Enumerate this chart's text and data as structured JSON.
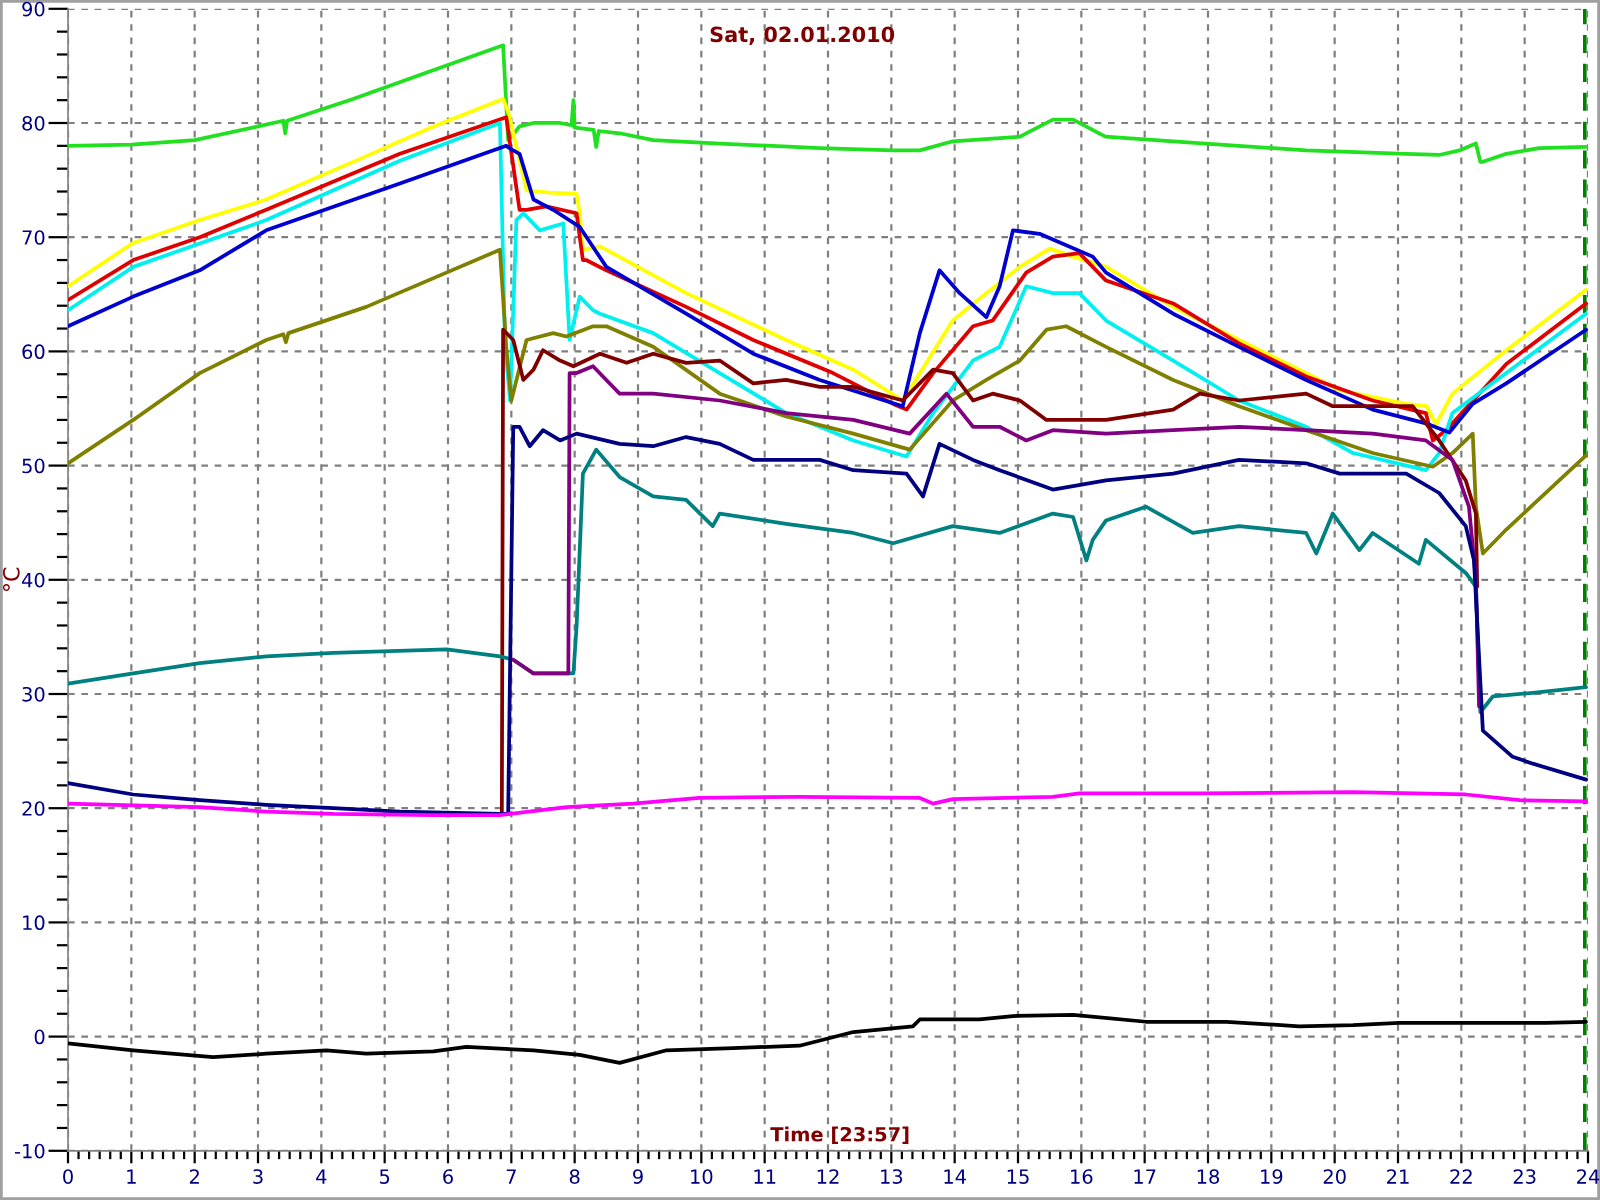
{
  "chart_data": {
    "type": "line",
    "title": "Sat, 02.01.2010",
    "xlabel": "Time [23:57]",
    "ylabel": "°C",
    "xlim": [
      0,
      24
    ],
    "ylim": [
      -10,
      90
    ],
    "xticks": [
      0,
      {
        "value": 0.1667,
        "label": null
      },
      {
        "value": 0.3333,
        "label": null
      },
      {
        "value": 0.5,
        "label": null
      },
      {
        "value": 0.6667,
        "label": null
      },
      {
        "value": 0.8333,
        "label": null
      },
      1,
      {
        "value": 1.1667,
        "label": null
      },
      {
        "value": 1.3333,
        "label": null
      },
      {
        "value": 1.5,
        "label": null
      },
      {
        "value": 1.6667,
        "label": null
      },
      {
        "value": 1.8333,
        "label": null
      },
      2,
      {
        "value": 2.1667,
        "label": null
      },
      {
        "value": 2.3333,
        "label": null
      },
      {
        "value": 2.5,
        "label": null
      },
      {
        "value": 2.6667,
        "label": null
      },
      {
        "value": 2.8333,
        "label": null
      },
      3,
      {
        "value": 3.1667,
        "label": null
      },
      {
        "value": 3.3333,
        "label": null
      },
      {
        "value": 3.5,
        "label": null
      },
      {
        "value": 3.6667,
        "label": null
      },
      {
        "value": 3.8333,
        "label": null
      },
      4,
      {
        "value": 4.1667,
        "label": null
      },
      {
        "value": 4.3333,
        "label": null
      },
      {
        "value": 4.5,
        "label": null
      },
      {
        "value": 4.6667,
        "label": null
      },
      {
        "value": 4.8333,
        "label": null
      },
      5,
      {
        "value": 5.1667,
        "label": null
      },
      {
        "value": 5.3333,
        "label": null
      },
      {
        "value": 5.5,
        "label": null
      },
      {
        "value": 5.6667,
        "label": null
      },
      {
        "value": 5.8333,
        "label": null
      },
      6,
      {
        "value": 6.1667,
        "label": null
      },
      {
        "value": 6.3333,
        "label": null
      },
      {
        "value": 6.5,
        "label": null
      },
      {
        "value": 6.6667,
        "label": null
      },
      {
        "value": 6.8333,
        "label": null
      },
      7,
      {
        "value": 7.1667,
        "label": null
      },
      {
        "value": 7.3333,
        "label": null
      },
      {
        "value": 7.5,
        "label": null
      },
      {
        "value": 7.6667,
        "label": null
      },
      {
        "value": 7.8333,
        "label": null
      },
      8,
      {
        "value": 8.1667,
        "label": null
      },
      {
        "value": 8.3333,
        "label": null
      },
      {
        "value": 8.5,
        "label": null
      },
      {
        "value": 8.6667,
        "label": null
      },
      {
        "value": 8.8333,
        "label": null
      },
      9,
      {
        "value": 9.1667,
        "label": null
      },
      {
        "value": 9.3333,
        "label": null
      },
      {
        "value": 9.5,
        "label": null
      },
      {
        "value": 9.6667,
        "label": null
      },
      {
        "value": 9.8333,
        "label": null
      },
      10,
      {
        "value": 10.1667,
        "label": null
      },
      {
        "value": 10.3333,
        "label": null
      },
      {
        "value": 10.5,
        "label": null
      },
      {
        "value": 10.6667,
        "label": null
      },
      {
        "value": 10.8333,
        "label": null
      },
      11,
      {
        "value": 11.1667,
        "label": null
      },
      {
        "value": 11.3333,
        "label": null
      },
      {
        "value": 11.5,
        "label": null
      },
      {
        "value": 11.6667,
        "label": null
      },
      {
        "value": 11.8333,
        "label": null
      },
      12,
      {
        "value": 12.1667,
        "label": null
      },
      {
        "value": 12.3333,
        "label": null
      },
      {
        "value": 12.5,
        "label": null
      },
      {
        "value": 12.6667,
        "label": null
      },
      {
        "value": 12.8333,
        "label": null
      },
      13,
      {
        "value": 13.1667,
        "label": null
      },
      {
        "value": 13.3333,
        "label": null
      },
      {
        "value": 13.5,
        "label": null
      },
      {
        "value": 13.6667,
        "label": null
      },
      {
        "value": 13.8333,
        "label": null
      },
      14,
      {
        "value": 14.1667,
        "label": null
      },
      {
        "value": 14.3333,
        "label": null
      },
      {
        "value": 14.5,
        "label": null
      },
      {
        "value": 14.6667,
        "label": null
      },
      {
        "value": 14.8333,
        "label": null
      },
      15,
      {
        "value": 15.1667,
        "label": null
      },
      {
        "value": 15.3333,
        "label": null
      },
      {
        "value": 15.5,
        "label": null
      },
      {
        "value": 15.6667,
        "label": null
      },
      {
        "value": 15.8333,
        "label": null
      },
      16,
      {
        "value": 16.1667,
        "label": null
      },
      {
        "value": 16.3333,
        "label": null
      },
      {
        "value": 16.5,
        "label": null
      },
      {
        "value": 16.6667,
        "label": null
      },
      {
        "value": 16.8333,
        "label": null
      },
      17,
      {
        "value": 17.1667,
        "label": null
      },
      {
        "value": 17.3333,
        "label": null
      },
      {
        "value": 17.5,
        "label": null
      },
      {
        "value": 17.6667,
        "label": null
      },
      {
        "value": 17.8333,
        "label": null
      },
      18,
      {
        "value": 18.1667,
        "label": null
      },
      {
        "value": 18.3333,
        "label": null
      },
      {
        "value": 18.5,
        "label": null
      },
      {
        "value": 18.6667,
        "label": null
      },
      {
        "value": 18.8333,
        "label": null
      },
      19,
      {
        "value": 19.1667,
        "label": null
      },
      {
        "value": 19.3333,
        "label": null
      },
      {
        "value": 19.5,
        "label": null
      },
      {
        "value": 19.6667,
        "label": null
      },
      {
        "value": 19.8333,
        "label": null
      },
      20,
      {
        "value": 20.1667,
        "label": null
      },
      {
        "value": 20.3333,
        "label": null
      },
      {
        "value": 20.5,
        "label": null
      },
      {
        "value": 20.6667,
        "label": null
      },
      {
        "value": 20.8333,
        "label": null
      },
      21,
      {
        "value": 21.1667,
        "label": null
      },
      {
        "value": 21.3333,
        "label": null
      },
      {
        "value": 21.5,
        "label": null
      },
      {
        "value": 21.6667,
        "label": null
      },
      {
        "value": 21.8333,
        "label": null
      },
      22,
      {
        "value": 22.1667,
        "label": null
      },
      {
        "value": 22.3333,
        "label": null
      },
      {
        "value": 22.5,
        "label": null
      },
      {
        "value": 22.6667,
        "label": null
      },
      {
        "value": 22.8333,
        "label": null
      },
      23,
      {
        "value": 23.1667,
        "label": null
      },
      {
        "value": 23.3333,
        "label": null
      },
      {
        "value": 23.5,
        "label": null
      },
      {
        "value": 23.6667,
        "label": null
      },
      {
        "value": 23.8333,
        "label": null
      },
      24
    ],
    "yticks": [
      -10,
      {
        "value": -8,
        "label": null
      },
      {
        "value": -6,
        "label": null
      },
      {
        "value": -4,
        "label": null
      },
      {
        "value": -2,
        "label": null
      },
      0,
      {
        "value": 2,
        "label": null
      },
      {
        "value": 4,
        "label": null
      },
      {
        "value": 6,
        "label": null
      },
      {
        "value": 8,
        "label": null
      },
      10,
      {
        "value": 12,
        "label": null
      },
      {
        "value": 14,
        "label": null
      },
      {
        "value": 16,
        "label": null
      },
      {
        "value": 18,
        "label": null
      },
      20,
      {
        "value": 22,
        "label": null
      },
      {
        "value": 24,
        "label": null
      },
      {
        "value": 26,
        "label": null
      },
      {
        "value": 28,
        "label": null
      },
      30,
      {
        "value": 32,
        "label": null
      },
      {
        "value": 34,
        "label": null
      },
      {
        "value": 36,
        "label": null
      },
      {
        "value": 38,
        "label": null
      },
      40,
      {
        "value": 42,
        "label": null
      },
      {
        "value": 44,
        "label": null
      },
      {
        "value": 46,
        "label": null
      },
      {
        "value": 48,
        "label": null
      },
      50,
      {
        "value": 52,
        "label": null
      },
      {
        "value": 54,
        "label": null
      },
      {
        "value": 56,
        "label": null
      },
      {
        "value": 58,
        "label": null
      },
      60,
      {
        "value": 62,
        "label": null
      },
      {
        "value": 64,
        "label": null
      },
      {
        "value": 66,
        "label": null
      },
      {
        "value": 68,
        "label": null
      },
      70,
      {
        "value": 72,
        "label": null
      },
      {
        "value": 74,
        "label": null
      },
      {
        "value": 76,
        "label": null
      },
      {
        "value": 78,
        "label": null
      },
      80,
      {
        "value": 82,
        "label": null
      },
      {
        "value": 84,
        "label": null
      },
      {
        "value": 86,
        "label": null
      },
      {
        "value": 88,
        "label": null
      },
      90
    ],
    "grid": true,
    "ref_lines": [
      {
        "axis": "x",
        "value": 23.95,
        "color": "#008000",
        "line_style": "dashed"
      }
    ],
    "series": [
      {
        "color": "#20e020",
        "x": [
          0,
          1,
          2,
          3,
          3.4,
          3.43,
          3.46,
          4.5,
          5.5,
          6.87,
          6.95,
          7.13,
          7.35,
          7.77,
          7.95,
          7.98,
          8.0,
          8.3,
          8.34,
          8.38,
          8.71,
          9.24,
          10.29,
          11.87,
          13.03,
          13.45,
          13.97,
          15.03,
          15.55,
          15.87,
          16.38,
          17.96,
          19.55,
          21.12,
          21.65,
          21.97,
          22.23,
          22.3,
          22.34,
          22.71,
          23.23,
          23.97
        ],
        "values": [
          78.0,
          78.1,
          78.5,
          79.7,
          80.2,
          79.1,
          80.2,
          82.1,
          84.1,
          86.8,
          78.5,
          79.7,
          80.0,
          80.0,
          79.8,
          82.0,
          79.6,
          79.4,
          77.9,
          79.3,
          79.1,
          78.5,
          78.2,
          77.8,
          77.6,
          77.6,
          78.4,
          78.8,
          80.3,
          80.3,
          78.8,
          78.2,
          77.6,
          77.3,
          77.2,
          77.6,
          78.2,
          76.6,
          76.6,
          77.3,
          77.8,
          77.9
        ]
      },
      {
        "color": "#ffff00",
        "x": [
          0,
          1.03,
          2.08,
          3.13,
          4.71,
          5.77,
          6.87,
          6.95,
          7.03,
          7.24,
          7.6,
          8.03,
          8.08,
          8.13,
          8.4,
          9.76,
          11.34,
          12.4,
          13.18,
          13.97,
          14.5,
          15.03,
          15.5,
          15.87,
          16.39,
          17.45,
          18.49,
          19.55,
          20.08,
          21.13,
          21.45,
          21.6,
          21.86,
          22.71,
          23.97
        ],
        "values": [
          65.7,
          69.5,
          71.5,
          73.3,
          77.1,
          79.7,
          82.1,
          81.0,
          79.1,
          74.1,
          73.9,
          73.8,
          72.1,
          68.9,
          69.2,
          65.1,
          61.0,
          58.4,
          55.7,
          62.7,
          65.1,
          67.4,
          69.0,
          68.3,
          67.4,
          63.9,
          61.0,
          58.1,
          56.6,
          55.4,
          55.2,
          53.6,
          56.3,
          60.1,
          65.4
        ]
      },
      {
        "color": "#e00000",
        "x": [
          0,
          1.03,
          2.08,
          3.13,
          5.24,
          6.92,
          7.13,
          7.24,
          7.55,
          8.03,
          8.13,
          8.18,
          8.5,
          9.76,
          10.82,
          12.08,
          13.03,
          13.24,
          13.66,
          14.29,
          14.6,
          15.13,
          15.55,
          15.97,
          16.39,
          17.45,
          18.49,
          19.55,
          20.6,
          21.44,
          21.55,
          21.76,
          22.71,
          23.97
        ],
        "values": [
          64.5,
          68.0,
          70.0,
          72.4,
          77.3,
          80.5,
          72.4,
          72.4,
          72.7,
          72.1,
          68.0,
          68.0,
          67.1,
          63.9,
          61.0,
          58.1,
          55.4,
          54.9,
          58.1,
          62.2,
          62.7,
          66.9,
          68.3,
          68.6,
          66.2,
          64.2,
          60.7,
          57.8,
          55.7,
          54.6,
          52.2,
          53.1,
          58.9,
          64.2
        ]
      },
      {
        "color": "#00f0f0",
        "x": [
          0,
          1.03,
          3.13,
          5.24,
          6.82,
          6.9,
          6.98,
          7.08,
          7.19,
          7.45,
          7.82,
          7.92,
          8.08,
          8.29,
          8.4,
          9.24,
          10.29,
          11.34,
          12.4,
          13.24,
          13.66,
          14.29,
          14.71,
          15.13,
          15.55,
          15.97,
          16.39,
          17.45,
          18.49,
          19.55,
          20.29,
          21.44,
          21.65,
          21.86,
          22.71,
          23.97
        ],
        "values": [
          63.6,
          67.4,
          71.5,
          76.7,
          80.0,
          60.7,
          55.7,
          71.5,
          72.1,
          70.6,
          71.2,
          61.0,
          64.8,
          63.6,
          63.3,
          61.6,
          58.1,
          54.6,
          52.2,
          50.8,
          54.6,
          59.2,
          60.4,
          65.7,
          65.1,
          65.1,
          62.7,
          59.2,
          55.7,
          53.4,
          51.1,
          49.6,
          51.1,
          54.6,
          58.1,
          63.3
        ]
      },
      {
        "color": "#0000d0",
        "x": [
          0,
          1.03,
          2.08,
          3.13,
          5.24,
          6.92,
          7.0,
          7.13,
          7.35,
          7.66,
          8.08,
          8.5,
          9.76,
          10.82,
          11.87,
          13.18,
          13.45,
          13.76,
          14.08,
          14.5,
          14.71,
          14.92,
          15.34,
          16.18,
          16.39,
          17.45,
          18.49,
          19.55,
          20.6,
          21.44,
          21.81,
          22.18,
          22.71,
          23.97
        ],
        "values": [
          62.2,
          64.8,
          67.1,
          70.6,
          74.7,
          78.0,
          77.7,
          77.3,
          73.3,
          72.4,
          70.9,
          67.4,
          63.3,
          59.8,
          57.5,
          55.2,
          61.6,
          67.1,
          65.1,
          63.0,
          65.7,
          70.6,
          70.3,
          68.3,
          66.9,
          63.3,
          60.4,
          57.5,
          54.9,
          53.7,
          52.9,
          55.4,
          57.2,
          61.9
        ]
      },
      {
        "color": "#808000",
        "x": [
          0,
          1.03,
          2.08,
          3.13,
          3.4,
          3.44,
          3.48,
          4.71,
          6.82,
          6.92,
          7.0,
          7.24,
          7.66,
          7.87,
          8.29,
          8.5,
          9.24,
          10.29,
          11.34,
          12.4,
          13.29,
          13.97,
          14.5,
          15.03,
          15.45,
          15.76,
          16.39,
          17.45,
          18.49,
          19.55,
          20.6,
          21.55,
          21.86,
          22.18,
          22.23,
          22.34,
          22.71,
          23.97
        ],
        "values": [
          50.2,
          54.0,
          58.1,
          61.0,
          61.5,
          60.8,
          61.6,
          63.9,
          68.9,
          60.4,
          55.7,
          61.0,
          61.6,
          61.3,
          62.2,
          62.2,
          60.4,
          56.3,
          54.3,
          52.8,
          51.4,
          55.7,
          57.5,
          59.2,
          61.9,
          62.2,
          60.4,
          57.5,
          55.2,
          53.1,
          51.1,
          49.9,
          51.1,
          52.8,
          46.4,
          42.3,
          44.4,
          50.9
        ]
      },
      {
        "color": "#800000",
        "x": [
          6.85,
          6.87,
          7.03,
          7.19,
          7.35,
          7.5,
          7.77,
          7.98,
          8.4,
          8.82,
          9.24,
          9.76,
          10.29,
          10.82,
          11.34,
          11.87,
          12.4,
          13.18,
          13.66,
          13.97,
          14.29,
          14.6,
          15.03,
          15.45,
          16.39,
          17.45,
          17.87,
          18.49,
          19.55,
          19.97,
          20.6,
          21.23,
          21.65,
          22.07,
          22.23,
          22.25
        ],
        "values": [
          19.6,
          61.9,
          61.0,
          57.5,
          58.4,
          60.1,
          59.2,
          58.7,
          59.8,
          59.0,
          59.8,
          59.0,
          59.2,
          57.2,
          57.5,
          56.9,
          56.9,
          55.7,
          58.4,
          58.1,
          55.7,
          56.3,
          55.7,
          54.0,
          54.0,
          54.9,
          56.3,
          55.7,
          56.3,
          55.2,
          55.2,
          55.2,
          52.2,
          48.7,
          45.8,
          39.4
        ]
      },
      {
        "color": "#008080",
        "x": [
          0,
          1.03,
          2.08,
          3.13,
          4.19,
          5.98,
          6.82,
          7.03,
          7.35,
          7.98,
          8.03,
          8.13,
          8.34,
          8.71,
          9.24,
          9.76,
          10.18,
          10.29,
          11.34,
          12.4,
          13.03,
          13.97,
          14.71,
          15.55,
          15.87,
          16.08,
          16.18,
          16.39,
          17.02,
          17.76,
          18.49,
          19.55,
          19.71,
          19.97,
          20.39,
          20.6,
          21.33,
          21.44,
          22.07,
          22.23,
          22.3,
          22.5,
          23.13,
          23.97
        ],
        "values": [
          30.9,
          31.8,
          32.7,
          33.3,
          33.6,
          33.9,
          33.3,
          33.0,
          31.8,
          31.8,
          35.9,
          49.3,
          51.4,
          49.0,
          47.3,
          47.0,
          44.7,
          45.8,
          44.9,
          44.1,
          43.2,
          44.7,
          44.1,
          45.8,
          45.5,
          41.7,
          43.5,
          45.2,
          46.4,
          44.1,
          44.7,
          44.1,
          42.3,
          45.8,
          42.6,
          44.1,
          41.4,
          43.5,
          40.6,
          39.4,
          28.4,
          29.8,
          30.1,
          30.6
        ]
      },
      {
        "color": "#800080",
        "x": [
          7.03,
          7.35,
          7.9,
          7.92,
          8.03,
          8.29,
          8.5,
          8.71,
          9.24,
          10.29,
          11.34,
          12.4,
          13.29,
          13.87,
          14.29,
          14.71,
          15.13,
          15.55,
          16.39,
          17.45,
          18.49,
          19.55,
          20.6,
          21.44,
          21.86,
          22.12,
          22.23,
          22.28
        ],
        "values": [
          33.0,
          31.8,
          31.8,
          58.1,
          58.1,
          58.7,
          57.5,
          56.3,
          56.3,
          55.7,
          54.6,
          54.0,
          52.8,
          56.3,
          53.4,
          53.4,
          52.2,
          53.1,
          52.8,
          53.1,
          53.4,
          53.1,
          52.8,
          52.2,
          50.5,
          46.4,
          40.0,
          28.9
        ]
      },
      {
        "color": "#000080",
        "x": [
          0,
          1.03,
          2.08,
          3.13,
          4.19,
          5.24,
          6.82,
          6.95,
          7.03,
          7.13,
          7.29,
          7.5,
          7.77,
          8.03,
          8.71,
          9.24,
          9.76,
          10.29,
          10.82,
          11.87,
          12.4,
          13.24,
          13.5,
          13.76,
          14.29,
          14.71,
          15.55,
          15.87,
          16.39,
          17.45,
          18.49,
          19.55,
          20.08,
          21.13,
          21.65,
          22.07,
          22.2,
          22.34,
          22.81,
          23.13,
          23.97
        ],
        "values": [
          22.2,
          21.2,
          20.7,
          20.3,
          20.0,
          19.7,
          19.5,
          19.5,
          53.4,
          53.4,
          51.7,
          53.1,
          52.2,
          52.8,
          51.9,
          51.7,
          52.5,
          51.9,
          50.5,
          50.5,
          49.6,
          49.3,
          47.3,
          51.9,
          50.5,
          49.6,
          47.9,
          48.2,
          48.7,
          49.3,
          50.5,
          50.2,
          49.3,
          49.3,
          47.6,
          44.7,
          41.7,
          26.8,
          24.5,
          23.9,
          22.5
        ]
      },
      {
        "color": "#ff00ff",
        "x": [
          0,
          2.08,
          3.13,
          4.19,
          5.77,
          6.82,
          7.87,
          8.92,
          9.97,
          11.55,
          13.45,
          13.66,
          13.97,
          15.55,
          15.97,
          17.87,
          20.29,
          22.07,
          22.92,
          23.97
        ],
        "values": [
          20.4,
          20.1,
          19.7,
          19.5,
          19.4,
          19.4,
          20.1,
          20.4,
          20.9,
          21.0,
          20.9,
          20.4,
          20.8,
          21.0,
          21.3,
          21.3,
          21.4,
          21.2,
          20.7,
          20.6
        ]
      },
      {
        "color": "#000000",
        "x": [
          0,
          1.03,
          2.29,
          3.13,
          4.08,
          4.71,
          5.77,
          6.29,
          7.35,
          8.08,
          8.71,
          9.45,
          10.5,
          11.55,
          12.4,
          13.34,
          13.45,
          14.39,
          14.92,
          15.87,
          17.02,
          18.29,
          19.44,
          20.29,
          21.02,
          23.34,
          23.97
        ],
        "values": [
          -0.6,
          -1.2,
          -1.8,
          -1.5,
          -1.2,
          -1.5,
          -1.3,
          -0.9,
          -1.2,
          -1.6,
          -2.3,
          -1.2,
          -1.0,
          -0.8,
          0.4,
          0.9,
          1.5,
          1.5,
          1.8,
          1.9,
          1.3,
          1.3,
          0.9,
          1.0,
          1.2,
          1.2,
          1.3
        ]
      }
    ]
  }
}
